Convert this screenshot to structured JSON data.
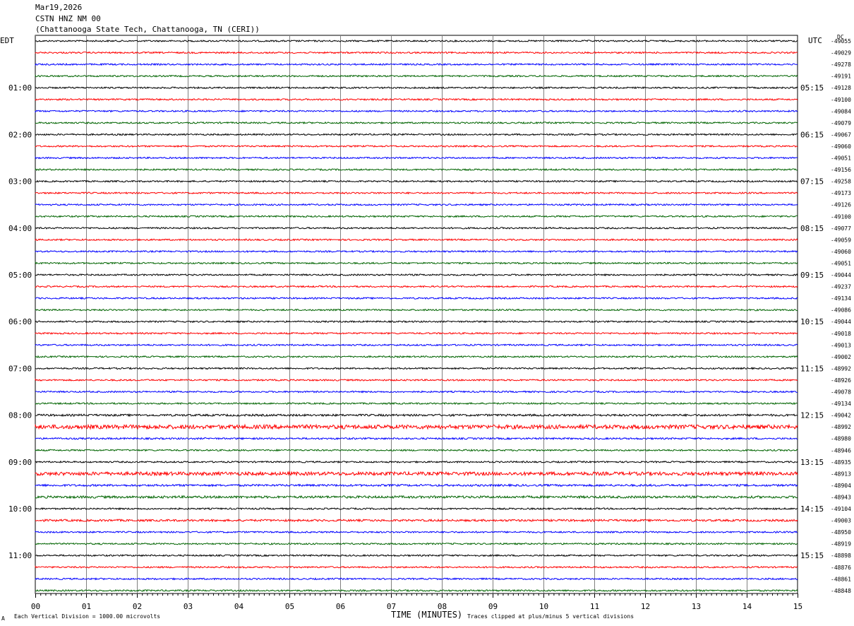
{
  "header": {
    "date": "Mar19,2026",
    "station": "CSTN HNZ NM 00",
    "location": "(Chattanooga State Tech, Chattanooga, TN (CERI))"
  },
  "axes": {
    "left_timezone": "EDT",
    "right_timezone": "UTC",
    "dc_label": "DC",
    "xlabel": "TIME (MINUTES)"
  },
  "footer": {
    "scale_note": "Each Vertical Division = 1000.00 microvolts",
    "clip_note": "Traces clipped at plus/minus 5 vertical divisions",
    "corner_mark": "A"
  },
  "chart_data": {
    "type": "line",
    "x_ticks": [
      "00",
      "01",
      "02",
      "03",
      "04",
      "05",
      "06",
      "07",
      "08",
      "09",
      "10",
      "11",
      "12",
      "13",
      "14",
      "15"
    ],
    "xlim": [
      0,
      15
    ],
    "grid": true,
    "trace_colors": [
      "#000000",
      "#ff0000",
      "#0000ff",
      "#006400"
    ],
    "left_hour_labels": [
      "01:00",
      "02:00",
      "03:00",
      "04:00",
      "05:00",
      "06:00",
      "07:00",
      "08:00",
      "09:00",
      "10:00",
      "11:00"
    ],
    "right_hour_labels": [
      "05:15",
      "06:15",
      "07:15",
      "08:15",
      "09:15",
      "10:15",
      "11:15",
      "12:15",
      "13:15",
      "14:15",
      "15:15"
    ],
    "dc_offsets": [
      "-49055",
      "-49029",
      "-49278",
      "-49191",
      "-49128",
      "-49100",
      "-49084",
      "-49079",
      "-49067",
      "-49060",
      "-49051",
      "-49156",
      "-49258",
      "-49173",
      "-49126",
      "-49100",
      "-49077",
      "-49059",
      "-49060",
      "-49051",
      "-49044",
      "-49237",
      "-49134",
      "-49086",
      "-49044",
      "-49018",
      "-49013",
      "-49002",
      "-48992",
      "-48926",
      "-49078",
      "-49134",
      "-49042",
      "-48992",
      "-48980",
      "-48946",
      "-48935",
      "-48913",
      "-48904",
      "-48943",
      "-49104",
      "-49003",
      "-48950",
      "-48919",
      "-48898",
      "-48876",
      "-48861",
      "-48848"
    ],
    "trace_count": 48,
    "noise_amplitude": [
      1,
      1,
      1,
      1,
      1,
      1,
      1,
      1,
      1,
      1,
      1,
      1,
      1,
      1,
      1,
      1,
      1,
      1,
      1,
      1,
      1,
      1,
      1,
      1,
      1,
      1,
      1,
      1,
      1,
      1,
      1,
      1,
      1.3,
      2.6,
      1.1,
      1,
      1,
      2.2,
      1.3,
      1.5,
      1,
      1.3,
      1,
      1,
      1,
      1,
      1,
      1
    ]
  }
}
